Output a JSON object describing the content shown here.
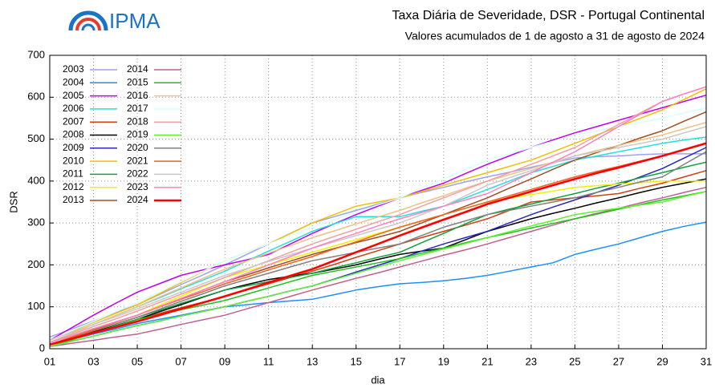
{
  "logo": {
    "text": "IPMA"
  },
  "chart_data": {
    "type": "line",
    "title": "Taxa Diária de Severidade, DSR - Portugal Continental",
    "subtitle": "Valores acumulados de  1 de agosto a 31 de agosto de 2024",
    "y_label": "DSR",
    "x_label": "dia",
    "grid": true,
    "legend": "upper left",
    "x": [
      1,
      2,
      3,
      4,
      5,
      6,
      7,
      8,
      9,
      10,
      11,
      12,
      13,
      14,
      15,
      16,
      17,
      18,
      19,
      20,
      21,
      22,
      23,
      24,
      25,
      26,
      27,
      28,
      29,
      30,
      31
    ],
    "xlim": [
      1,
      31
    ],
    "xticks": [
      {
        "value": 1,
        "label": "01"
      },
      {
        "value": 3,
        "label": "03"
      },
      {
        "value": 5,
        "label": "05"
      },
      {
        "value": 7,
        "label": "07"
      },
      {
        "value": 9,
        "label": "09"
      },
      {
        "value": 11,
        "label": "11"
      },
      {
        "value": 13,
        "label": "13"
      },
      {
        "value": 15,
        "label": "15"
      },
      {
        "value": 17,
        "label": "17"
      },
      {
        "value": 19,
        "label": "19"
      },
      {
        "value": 21,
        "label": "21"
      },
      {
        "value": 23,
        "label": "23"
      },
      {
        "value": 25,
        "label": "25"
      },
      {
        "value": 27,
        "label": "27"
      },
      {
        "value": 29,
        "label": "29"
      },
      {
        "value": 31,
        "label": "31"
      }
    ],
    "ylim": [
      0,
      700
    ],
    "yticks": [
      0,
      100,
      200,
      300,
      400,
      500,
      600,
      700
    ],
    "series": [
      {
        "name": "2003",
        "color": "#a0a0f0",
        "values": [
          28,
          47,
          66,
          86,
          105,
          129,
          153,
          176,
          200,
          225,
          250,
          275,
          300,
          315,
          330,
          345,
          360,
          373,
          385,
          398,
          410,
          421,
          433,
          444,
          455,
          458,
          460,
          463,
          465,
          465,
          465
        ]
      },
      {
        "name": "2004",
        "color": "#1e8fff",
        "values": [
          10,
          22,
          35,
          47,
          60,
          70,
          80,
          90,
          100,
          105,
          110,
          114,
          118,
          129,
          140,
          148,
          155,
          158,
          162,
          168,
          175,
          185,
          195,
          205,
          225,
          238,
          250,
          265,
          280,
          292,
          302
        ]
      },
      {
        "name": "2005",
        "color": "#c000f0",
        "values": [
          20,
          50,
          80,
          108,
          135,
          155,
          175,
          188,
          200,
          212,
          225,
          250,
          275,
          298,
          320,
          340,
          360,
          378,
          395,
          418,
          440,
          460,
          480,
          498,
          515,
          530,
          545,
          560,
          575,
          590,
          605
        ]
      },
      {
        "name": "2006",
        "color": "#20e0e0",
        "values": [
          15,
          36,
          58,
          79,
          100,
          121,
          143,
          164,
          185,
          209,
          233,
          256,
          280,
          298,
          315,
          315,
          315,
          328,
          340,
          360,
          380,
          400,
          420,
          435,
          450,
          460,
          470,
          480,
          490,
          498,
          505
        ]
      },
      {
        "name": "2007",
        "color": "#d04010",
        "values": [
          5,
          21,
          38,
          54,
          70,
          84,
          98,
          111,
          125,
          140,
          155,
          170,
          185,
          201,
          218,
          234,
          250,
          265,
          280,
          295,
          310,
          330,
          350,
          355,
          360,
          365,
          370,
          383,
          395,
          410,
          425
        ]
      },
      {
        "name": "2008",
        "color": "#000000",
        "values": [
          10,
          25,
          40,
          55,
          70,
          88,
          105,
          123,
          140,
          153,
          165,
          173,
          180,
          190,
          200,
          213,
          225,
          233,
          240,
          260,
          280,
          295,
          310,
          323,
          335,
          348,
          360,
          373,
          385,
          395,
          405
        ]
      },
      {
        "name": "2009",
        "color": "#2828c0",
        "values": [
          5,
          18,
          30,
          43,
          55,
          66,
          78,
          89,
          100,
          113,
          125,
          138,
          150,
          166,
          183,
          199,
          215,
          233,
          250,
          265,
          280,
          300,
          320,
          338,
          355,
          373,
          390,
          410,
          430,
          455,
          480
        ]
      },
      {
        "name": "2010",
        "color": "#f0c000",
        "values": [
          20,
          41,
          63,
          84,
          105,
          131,
          158,
          184,
          210,
          230,
          250,
          275,
          300,
          320,
          340,
          350,
          360,
          375,
          390,
          405,
          420,
          435,
          450,
          470,
          490,
          510,
          530,
          550,
          570,
          595,
          620
        ]
      },
      {
        "name": "2011",
        "color": "#10a040",
        "values": [
          10,
          26,
          43,
          59,
          75,
          91,
          108,
          124,
          140,
          150,
          160,
          170,
          180,
          193,
          205,
          218,
          230,
          253,
          275,
          298,
          320,
          333,
          345,
          358,
          370,
          383,
          395,
          408,
          420,
          433,
          445
        ]
      },
      {
        "name": "2012",
        "color": "#f0f000",
        "values": [
          10,
          28,
          45,
          63,
          80,
          103,
          125,
          148,
          170,
          185,
          200,
          215,
          230,
          245,
          260,
          275,
          290,
          305,
          320,
          335,
          350,
          359,
          368,
          376,
          385,
          389,
          393,
          396,
          400,
          400,
          400
        ]
      },
      {
        "name": "2013",
        "color": "#a05020",
        "values": [
          10,
          28,
          45,
          63,
          80,
          100,
          120,
          140,
          160,
          176,
          193,
          209,
          225,
          239,
          253,
          266,
          280,
          300,
          320,
          340,
          360,
          383,
          405,
          428,
          450,
          468,
          485,
          503,
          520,
          543,
          565
        ]
      },
      {
        "name": "2014",
        "color": "#c06090",
        "values": [
          5,
          13,
          20,
          28,
          35,
          46,
          58,
          69,
          80,
          95,
          110,
          125,
          140,
          154,
          168,
          181,
          195,
          209,
          223,
          236,
          250,
          265,
          280,
          295,
          310,
          323,
          335,
          348,
          360,
          373,
          385
        ]
      },
      {
        "name": "2015",
        "color": "#20c020",
        "values": [
          5,
          21,
          38,
          54,
          70,
          81,
          93,
          104,
          115,
          130,
          145,
          160,
          175,
          185,
          195,
          205,
          215,
          228,
          240,
          253,
          265,
          276,
          288,
          299,
          310,
          321,
          333,
          344,
          355,
          365,
          375
        ]
      },
      {
        "name": "2016",
        "color": "#f0c080",
        "values": [
          15,
          36,
          58,
          79,
          100,
          123,
          145,
          168,
          190,
          209,
          228,
          246,
          265,
          281,
          298,
          314,
          330,
          348,
          365,
          383,
          400,
          415,
          430,
          445,
          460,
          473,
          485,
          498,
          510,
          525,
          540
        ]
      },
      {
        "name": "2017",
        "color": "#d8ffff",
        "values": [
          20,
          43,
          65,
          88,
          110,
          135,
          160,
          185,
          210,
          230,
          250,
          270,
          290,
          308,
          325,
          343,
          360,
          383,
          405,
          428,
          450,
          465,
          480,
          495,
          510,
          520,
          530,
          540,
          550,
          563,
          575
        ]
      },
      {
        "name": "2018",
        "color": "#f0a0a0",
        "values": [
          15,
          34,
          53,
          71,
          90,
          110,
          130,
          150,
          170,
          190,
          210,
          230,
          250,
          268,
          285,
          303,
          320,
          340,
          360,
          380,
          400,
          420,
          440,
          460,
          480,
          508,
          535,
          563,
          590,
          608,
          625
        ]
      },
      {
        "name": "2019",
        "color": "#60f030",
        "values": [
          5,
          18,
          30,
          43,
          55,
          66,
          78,
          89,
          100,
          113,
          125,
          138,
          150,
          165,
          180,
          195,
          210,
          224,
          238,
          251,
          265,
          279,
          293,
          306,
          320,
          328,
          335,
          343,
          350,
          363,
          375
        ]
      },
      {
        "name": "2020",
        "color": "#808080",
        "values": [
          10,
          26,
          43,
          59,
          75,
          94,
          113,
          131,
          150,
          165,
          180,
          195,
          210,
          220,
          230,
          240,
          250,
          270,
          290,
          305,
          320,
          330,
          340,
          350,
          360,
          373,
          385,
          398,
          410,
          440,
          470
        ]
      },
      {
        "name": "2021",
        "color": "#f06020",
        "values": [
          10,
          28,
          45,
          63,
          80,
          99,
          118,
          136,
          155,
          171,
          188,
          204,
          220,
          238,
          255,
          273,
          290,
          305,
          320,
          335,
          350,
          365,
          380,
          395,
          410,
          423,
          435,
          448,
          460,
          475,
          490
        ]
      },
      {
        "name": "2022",
        "color": "#c8c8c8",
        "values": [
          20,
          39,
          58,
          76,
          95,
          115,
          135,
          155,
          175,
          191,
          208,
          224,
          240,
          255,
          270,
          285,
          300,
          320,
          340,
          365,
          390,
          408,
          425,
          443,
          460,
          470,
          480,
          490,
          500,
          515,
          530
        ]
      },
      {
        "name": "2023",
        "color": "#ff80c0",
        "values": [
          15,
          31,
          48,
          64,
          80,
          100,
          120,
          140,
          160,
          180,
          200,
          220,
          240,
          258,
          275,
          293,
          310,
          325,
          340,
          355,
          370,
          395,
          420,
          445,
          470,
          500,
          530,
          560,
          590,
          608,
          625
        ]
      },
      {
        "name": "2024",
        "color": "#ff0000",
        "values": [
          10,
          24,
          38,
          51,
          65,
          80,
          95,
          110,
          125,
          141,
          158,
          174,
          190,
          210,
          230,
          250,
          270,
          289,
          308,
          326,
          345,
          360,
          375,
          390,
          405,
          419,
          432,
          446,
          460,
          475,
          490
        ]
      }
    ]
  }
}
